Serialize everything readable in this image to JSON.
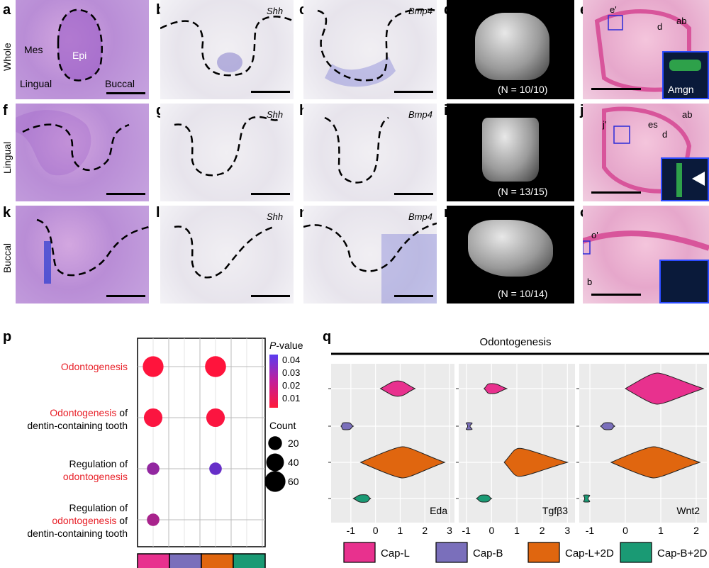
{
  "panel_letters": [
    "a",
    "b",
    "c",
    "d",
    "e",
    "f",
    "g",
    "h",
    "i",
    "j",
    "k",
    "l",
    "m",
    "n",
    "o",
    "p",
    "q"
  ],
  "row_labels": {
    "whole": "Whole",
    "lingual": "Lingual",
    "buccal": "Buccal"
  },
  "panel_a": {
    "mes": "Mes",
    "epi": "Epi",
    "lingual": "Lingual",
    "buccal": "Buccal"
  },
  "genes": {
    "shh": "Shh",
    "bmp4": "Bmp4"
  },
  "ct_n": {
    "d": "(N = 10/10)",
    "i": "(N = 13/15)",
    "n": "(N = 10/14)"
  },
  "panel_e": {
    "sub": "e'",
    "d": "d",
    "ab": "ab",
    "amgn": "Amgn"
  },
  "panel_j": {
    "sub": "j'",
    "es": "es",
    "d": "d",
    "ab": "ab"
  },
  "panel_o": {
    "sub": "o'",
    "b": "b"
  },
  "chart_data": [
    {
      "type": "scatter",
      "panel": "p",
      "title": "",
      "rows": [
        "Odontogenesis",
        "Odontogenesis of dentin-containing tooth",
        "Regulation of odontogenesis",
        "Regulation of odontogenesis of dentin-containing tooth"
      ],
      "columns": [
        "Cap-L",
        "Cap-B",
        "Cap-L+2D",
        "Cap-B+2D"
      ],
      "points": [
        {
          "row": 0,
          "col": 0,
          "count": 60,
          "p": 0.005
        },
        {
          "row": 0,
          "col": 2,
          "count": 62,
          "p": 0.005
        },
        {
          "row": 1,
          "col": 0,
          "count": 45,
          "p": 0.006
        },
        {
          "row": 1,
          "col": 2,
          "count": 45,
          "p": 0.006
        },
        {
          "row": 2,
          "col": 0,
          "count": 15,
          "p": 0.03
        },
        {
          "row": 2,
          "col": 2,
          "count": 15,
          "p": 0.04
        },
        {
          "row": 3,
          "col": 0,
          "count": 15,
          "p": 0.025
        }
      ],
      "colorbar": {
        "title_italic": "P",
        "title_rest": "-value",
        "ticks": [
          "0.04",
          "0.03",
          "0.02",
          "0.01"
        ]
      },
      "size_legend": {
        "title": "Count",
        "values": [
          "20",
          "40",
          "60"
        ]
      }
    },
    {
      "type": "violin",
      "panel": "q",
      "title": "Odontogenesis",
      "groups": [
        "Cap-L",
        "Cap-B",
        "Cap-L+2D",
        "Cap-B+2D"
      ],
      "group_colors": [
        "#e8318e",
        "#7a6fbb",
        "#e0660f",
        "#1a9a74"
      ],
      "facets": [
        {
          "gene": "Eda",
          "xticks": [
            "-1",
            "0",
            "1",
            "2",
            "3"
          ],
          "xlim": [
            -1.8,
            3.2
          ],
          "ranges": [
            [
              0.2,
              1.6
            ],
            [
              -1.4,
              -0.9
            ],
            [
              -0.6,
              2.8
            ],
            [
              -0.9,
              -0.2
            ]
          ],
          "peaks": [
            0.9,
            -1.2,
            1.1,
            -0.5
          ]
        },
        {
          "gene": "Tgfβ3",
          "xticks": [
            "-1",
            "0",
            "1",
            "2",
            "3"
          ],
          "xlim": [
            -1.3,
            3.3
          ],
          "ranges": [
            [
              -0.3,
              0.6
            ],
            [
              -0.95,
              -0.85
            ],
            [
              0.5,
              3.0
            ],
            [
              -0.6,
              0.0
            ]
          ],
          "peaks": [
            0.0,
            -0.9,
            1.1,
            -0.3
          ]
        },
        {
          "gene": "Wnt2",
          "xticks": [
            "-1",
            "0",
            "1",
            "2"
          ],
          "xlim": [
            -1.3,
            2.3
          ],
          "ranges": [
            [
              0.0,
              2.2
            ],
            [
              -0.7,
              -0.3
            ],
            [
              -0.4,
              2.1
            ],
            [
              -1.15,
              -1.05
            ]
          ],
          "peaks": [
            0.9,
            -0.5,
            0.8,
            -1.1
          ]
        }
      ]
    }
  ]
}
